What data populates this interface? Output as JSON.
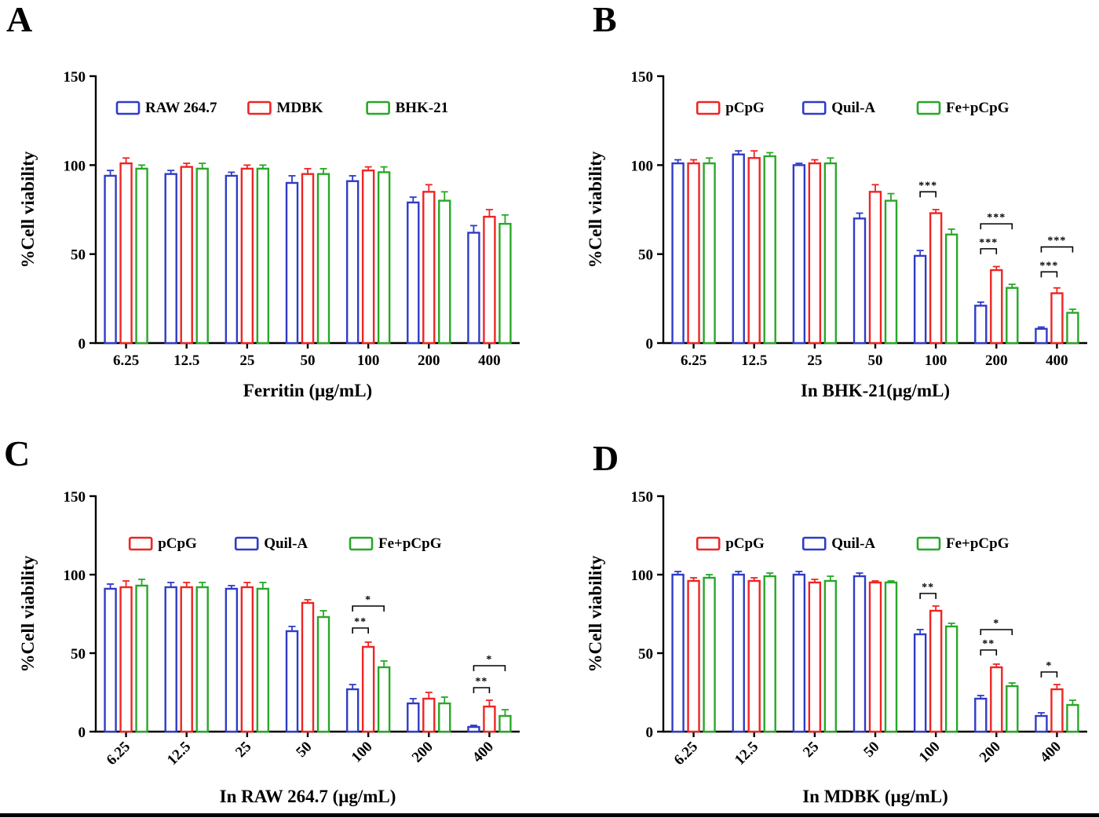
{
  "figure": {
    "colors": {
      "blue": "#2f3bc6",
      "red": "#ee2524",
      "green": "#27a827"
    },
    "axis_color": "#000000",
    "background": "#ffffff"
  },
  "chart_data": [
    {
      "type": "bar",
      "panel_label": "A",
      "ylabel": "%Cell viability",
      "xlabel": "Ferritin (μg/mL)",
      "ylim": [
        0,
        150
      ],
      "yticks": [
        0,
        50,
        100,
        150
      ],
      "categories": [
        "6.25",
        "12.5",
        "25",
        "50",
        "100",
        "200",
        "400"
      ],
      "rotate_xticks": false,
      "legend_position": "top-left",
      "legend": [
        {
          "name": "RAW 264.7",
          "color": "blue"
        },
        {
          "name": "MDBK",
          "color": "red"
        },
        {
          "name": "BHK-21",
          "color": "green"
        }
      ],
      "series": [
        {
          "name": "RAW 264.7",
          "color": "blue",
          "values": [
            94,
            95,
            94,
            90,
            91,
            79,
            62
          ],
          "errors": [
            3,
            2,
            2,
            4,
            3,
            3,
            4
          ]
        },
        {
          "name": "MDBK",
          "color": "red",
          "values": [
            101,
            99,
            98,
            95,
            97,
            85,
            71
          ],
          "errors": [
            3,
            2,
            2,
            3,
            2,
            4,
            4
          ]
        },
        {
          "name": "BHK-21",
          "color": "green",
          "values": [
            98,
            98,
            98,
            95,
            96,
            80,
            67
          ],
          "errors": [
            2,
            3,
            2,
            3,
            3,
            5,
            5
          ]
        }
      ],
      "annotations": []
    },
    {
      "type": "bar",
      "panel_label": "B",
      "ylabel": "%Cell viability",
      "xlabel": "In BHK-21(μg/mL)",
      "ylim": [
        0,
        150
      ],
      "yticks": [
        0,
        50,
        100,
        150
      ],
      "categories": [
        "6.25",
        "12.5",
        "25",
        "50",
        "100",
        "200",
        "400"
      ],
      "rotate_xticks": false,
      "legend_position": "top-center",
      "legend": [
        {
          "name": "pCpG",
          "color": "red"
        },
        {
          "name": "Quil-A",
          "color": "blue"
        },
        {
          "name": "Fe+pCpG",
          "color": "green"
        }
      ],
      "series": [
        {
          "name": "Quil-A",
          "color": "blue",
          "values": [
            101,
            106,
            100,
            70,
            49,
            21,
            8
          ],
          "errors": [
            2,
            2,
            1,
            3,
            3,
            2,
            1
          ]
        },
        {
          "name": "pCpG",
          "color": "red",
          "values": [
            101,
            104,
            101,
            85,
            73,
            41,
            28
          ],
          "errors": [
            2,
            4,
            2,
            4,
            2,
            2,
            3
          ]
        },
        {
          "name": "Fe+pCpG",
          "color": "green",
          "values": [
            101,
            105,
            101,
            80,
            61,
            31,
            17
          ],
          "errors": [
            3,
            2,
            3,
            4,
            3,
            2,
            2
          ]
        }
      ],
      "annotations": [
        {
          "category": "100",
          "from": 0,
          "to": 1,
          "label": "***",
          "y": 85
        },
        {
          "category": "200",
          "from": 0,
          "to": 1,
          "label": "***",
          "y": 53
        },
        {
          "category": "200",
          "from": 0,
          "to": 2,
          "label": "***",
          "y": 67
        },
        {
          "category": "400",
          "from": 0,
          "to": 1,
          "label": "***",
          "y": 40
        },
        {
          "category": "400",
          "from": 0,
          "to": 2,
          "label": "***",
          "y": 54
        }
      ]
    },
    {
      "type": "bar",
      "panel_label": "C",
      "ylabel": "%Cell viability",
      "xlabel": "In RAW 264.7 (μg/mL)",
      "ylim": [
        0,
        150
      ],
      "yticks": [
        0,
        50,
        100,
        150
      ],
      "categories": [
        "6.25",
        "12.5",
        "25",
        "50",
        "100",
        "200",
        "400"
      ],
      "rotate_xticks": true,
      "legend_position": "top-center",
      "legend": [
        {
          "name": "pCpG",
          "color": "red"
        },
        {
          "name": "Quil-A",
          "color": "blue"
        },
        {
          "name": "Fe+pCpG",
          "color": "green"
        }
      ],
      "series": [
        {
          "name": "Quil-A",
          "color": "blue",
          "values": [
            91,
            92,
            91,
            64,
            27,
            18,
            3
          ],
          "errors": [
            3,
            3,
            2,
            3,
            3,
            3,
            1
          ]
        },
        {
          "name": "pCpG",
          "color": "red",
          "values": [
            92,
            92,
            92,
            82,
            54,
            21,
            16
          ],
          "errors": [
            4,
            3,
            3,
            2,
            3,
            4,
            4
          ]
        },
        {
          "name": "Fe+pCpG",
          "color": "green",
          "values": [
            93,
            92,
            91,
            73,
            41,
            18,
            10
          ],
          "errors": [
            4,
            3,
            4,
            4,
            4,
            4,
            4
          ]
        }
      ],
      "annotations": [
        {
          "category": "100",
          "from": 0,
          "to": 1,
          "label": "**",
          "y": 66
        },
        {
          "category": "100",
          "from": 0,
          "to": 2,
          "label": "*",
          "y": 80
        },
        {
          "category": "400",
          "from": 0,
          "to": 1,
          "label": "**",
          "y": 28
        },
        {
          "category": "400",
          "from": 0,
          "to": 2,
          "label": "*",
          "y": 42
        }
      ]
    },
    {
      "type": "bar",
      "panel_label": "D",
      "ylabel": "%Cell viability",
      "xlabel": "In MDBK (μg/mL)",
      "ylim": [
        0,
        150
      ],
      "yticks": [
        0,
        50,
        100,
        150
      ],
      "categories": [
        "6.25",
        "12.5",
        "25",
        "50",
        "100",
        "200",
        "400"
      ],
      "rotate_xticks": true,
      "legend_position": "top-center",
      "legend": [
        {
          "name": "pCpG",
          "color": "red"
        },
        {
          "name": "Quil-A",
          "color": "blue"
        },
        {
          "name": "Fe+pCpG",
          "color": "green"
        }
      ],
      "series": [
        {
          "name": "Quil-A",
          "color": "blue",
          "values": [
            100,
            100,
            100,
            99,
            62,
            21,
            10
          ],
          "errors": [
            2,
            2,
            2,
            2,
            3,
            2,
            2
          ]
        },
        {
          "name": "pCpG",
          "color": "red",
          "values": [
            96,
            96,
            95,
            95,
            77,
            41,
            27
          ],
          "errors": [
            2,
            2,
            2,
            1,
            3,
            2,
            3
          ]
        },
        {
          "name": "Fe+pCpG",
          "color": "green",
          "values": [
            98,
            99,
            96,
            95,
            67,
            29,
            17
          ],
          "errors": [
            2,
            2,
            3,
            1,
            2,
            2,
            3
          ]
        }
      ],
      "annotations": [
        {
          "category": "100",
          "from": 0,
          "to": 1,
          "label": "**",
          "y": 88
        },
        {
          "category": "200",
          "from": 0,
          "to": 1,
          "label": "**",
          "y": 52
        },
        {
          "category": "200",
          "from": 0,
          "to": 2,
          "label": "*",
          "y": 65
        },
        {
          "category": "400",
          "from": 0,
          "to": 1,
          "label": "*",
          "y": 38
        }
      ]
    }
  ]
}
